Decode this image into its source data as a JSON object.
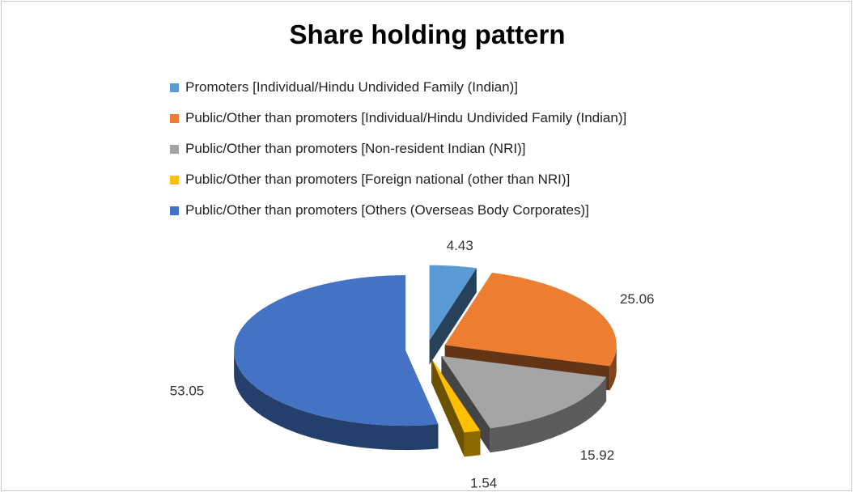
{
  "chart_data": {
    "type": "pie",
    "title": "Share holding pattern",
    "legend_position": "top",
    "series": [
      {
        "name": "Promoters [Individual/Hindu Undivided Family (Indian)]",
        "value": 4.43,
        "label": "4.43",
        "color": "#5b9bd5"
      },
      {
        "name": "Public/Other than promoters [Individual/Hindu Undivided Family (Indian)]",
        "value": 25.06,
        "label": "25.06",
        "color": "#ed7d31"
      },
      {
        "name": "Public/Other than promoters [Non-resident Indian (NRI)]",
        "value": 15.92,
        "label": "15.92",
        "color": "#a5a5a5"
      },
      {
        "name": "Public/Other than promoters [Foreign national (other than NRI)]",
        "value": 1.54,
        "label": "1.54",
        "color": "#ffc000"
      },
      {
        "name": "Public/Other than promoters [Others (Overseas Body Corporates)]",
        "value": 53.05,
        "label": "53.05",
        "color": "#4472c4"
      }
    ]
  }
}
